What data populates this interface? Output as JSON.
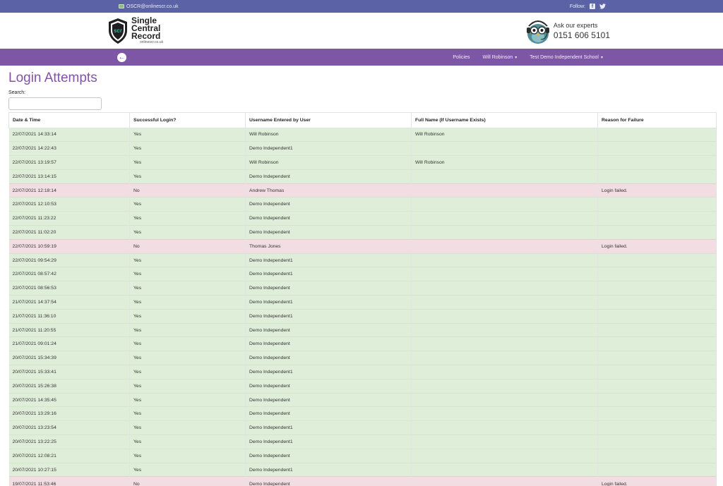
{
  "topbar": {
    "email": "OSCR@onlinescr.co.uk",
    "follow_label": "Follow:"
  },
  "brand": {
    "line1": "Single",
    "line2": "Central",
    "line3": "Record",
    "url": "onlinescr.co.uk",
    "badge": "scr"
  },
  "experts": {
    "ask": "Ask our experts",
    "phone": "0151 606 5101"
  },
  "nav": {
    "policies": "Policies",
    "user": "Will Robinson",
    "school": "Test Demo Independent School"
  },
  "page": {
    "title": "Login Attempts",
    "search_label": "Search:",
    "search_value": ""
  },
  "colors": {
    "topbar": "#5b62a5",
    "navbar": "#7e56a6",
    "title": "#8453a8",
    "row_ok": "#dfeed9",
    "row_fail": "#f2dde2"
  },
  "table": {
    "headers": [
      "Date & Time",
      "Successful Login?",
      "Username Entered by User",
      "Full Name (If Username Exists)",
      "Reason for Failure"
    ],
    "rows": [
      [
        "22/07/2021 14:33:14",
        "Yes",
        "Will Robinson",
        "Will Robinson",
        ""
      ],
      [
        "22/07/2021 14:22:43",
        "Yes",
        "Demo Independent1",
        "",
        ""
      ],
      [
        "22/07/2021 13:19:57",
        "Yes",
        "Will Robinson",
        "Will Robinson",
        ""
      ],
      [
        "22/07/2021 13:14:15",
        "Yes",
        "Demo Independent",
        "",
        ""
      ],
      [
        "22/07/2021 12:18:14",
        "No",
        "Andrew Thomas",
        "",
        "Login failed."
      ],
      [
        "22/07/2021 12:10:53",
        "Yes",
        "Demo Independent",
        "",
        ""
      ],
      [
        "22/07/2021 11:23:22",
        "Yes",
        "Demo Independent",
        "",
        ""
      ],
      [
        "22/07/2021 11:02:20",
        "Yes",
        "Demo Independent",
        "",
        ""
      ],
      [
        "22/07/2021 10:59:19",
        "No",
        "Thomas Jones",
        "",
        "Login failed."
      ],
      [
        "22/07/2021 09:54:29",
        "Yes",
        "Demo Independent1",
        "",
        ""
      ],
      [
        "22/07/2021 08:57:42",
        "Yes",
        "Demo Independent1",
        "",
        ""
      ],
      [
        "22/07/2021 08:56:53",
        "Yes",
        "Demo Independent",
        "",
        ""
      ],
      [
        "21/07/2021 14:37:54",
        "Yes",
        "Demo Independent1",
        "",
        ""
      ],
      [
        "21/07/2021 11:36:10",
        "Yes",
        "Demo Independent1",
        "",
        ""
      ],
      [
        "21/07/2021 11:20:55",
        "Yes",
        "Demo Independent",
        "",
        ""
      ],
      [
        "21/07/2021 09:01:24",
        "Yes",
        "Demo Independent",
        "",
        ""
      ],
      [
        "20/07/2021 15:34:39",
        "Yes",
        "Demo Independent",
        "",
        ""
      ],
      [
        "20/07/2021 15:33:41",
        "Yes",
        "Demo Independent1",
        "",
        ""
      ],
      [
        "20/07/2021 15:26:38",
        "Yes",
        "Demo Independent",
        "",
        ""
      ],
      [
        "20/07/2021 14:35:45",
        "Yes",
        "Demo Independent",
        "",
        ""
      ],
      [
        "20/07/2021 13:29:16",
        "Yes",
        "Demo Independent",
        "",
        ""
      ],
      [
        "20/07/2021 13:23:54",
        "Yes",
        "Demo Independent1",
        "",
        ""
      ],
      [
        "20/07/2021 13:22:25",
        "Yes",
        "Demo Independent1",
        "",
        ""
      ],
      [
        "20/07/2021 12:08:21",
        "Yes",
        "Demo Independent",
        "",
        ""
      ],
      [
        "20/07/2021 10:27:15",
        "Yes",
        "Demo Independent1",
        "",
        ""
      ],
      [
        "19/07/2021 11:53:46",
        "No",
        "Demo Independent",
        "",
        "Login failed."
      ]
    ]
  }
}
